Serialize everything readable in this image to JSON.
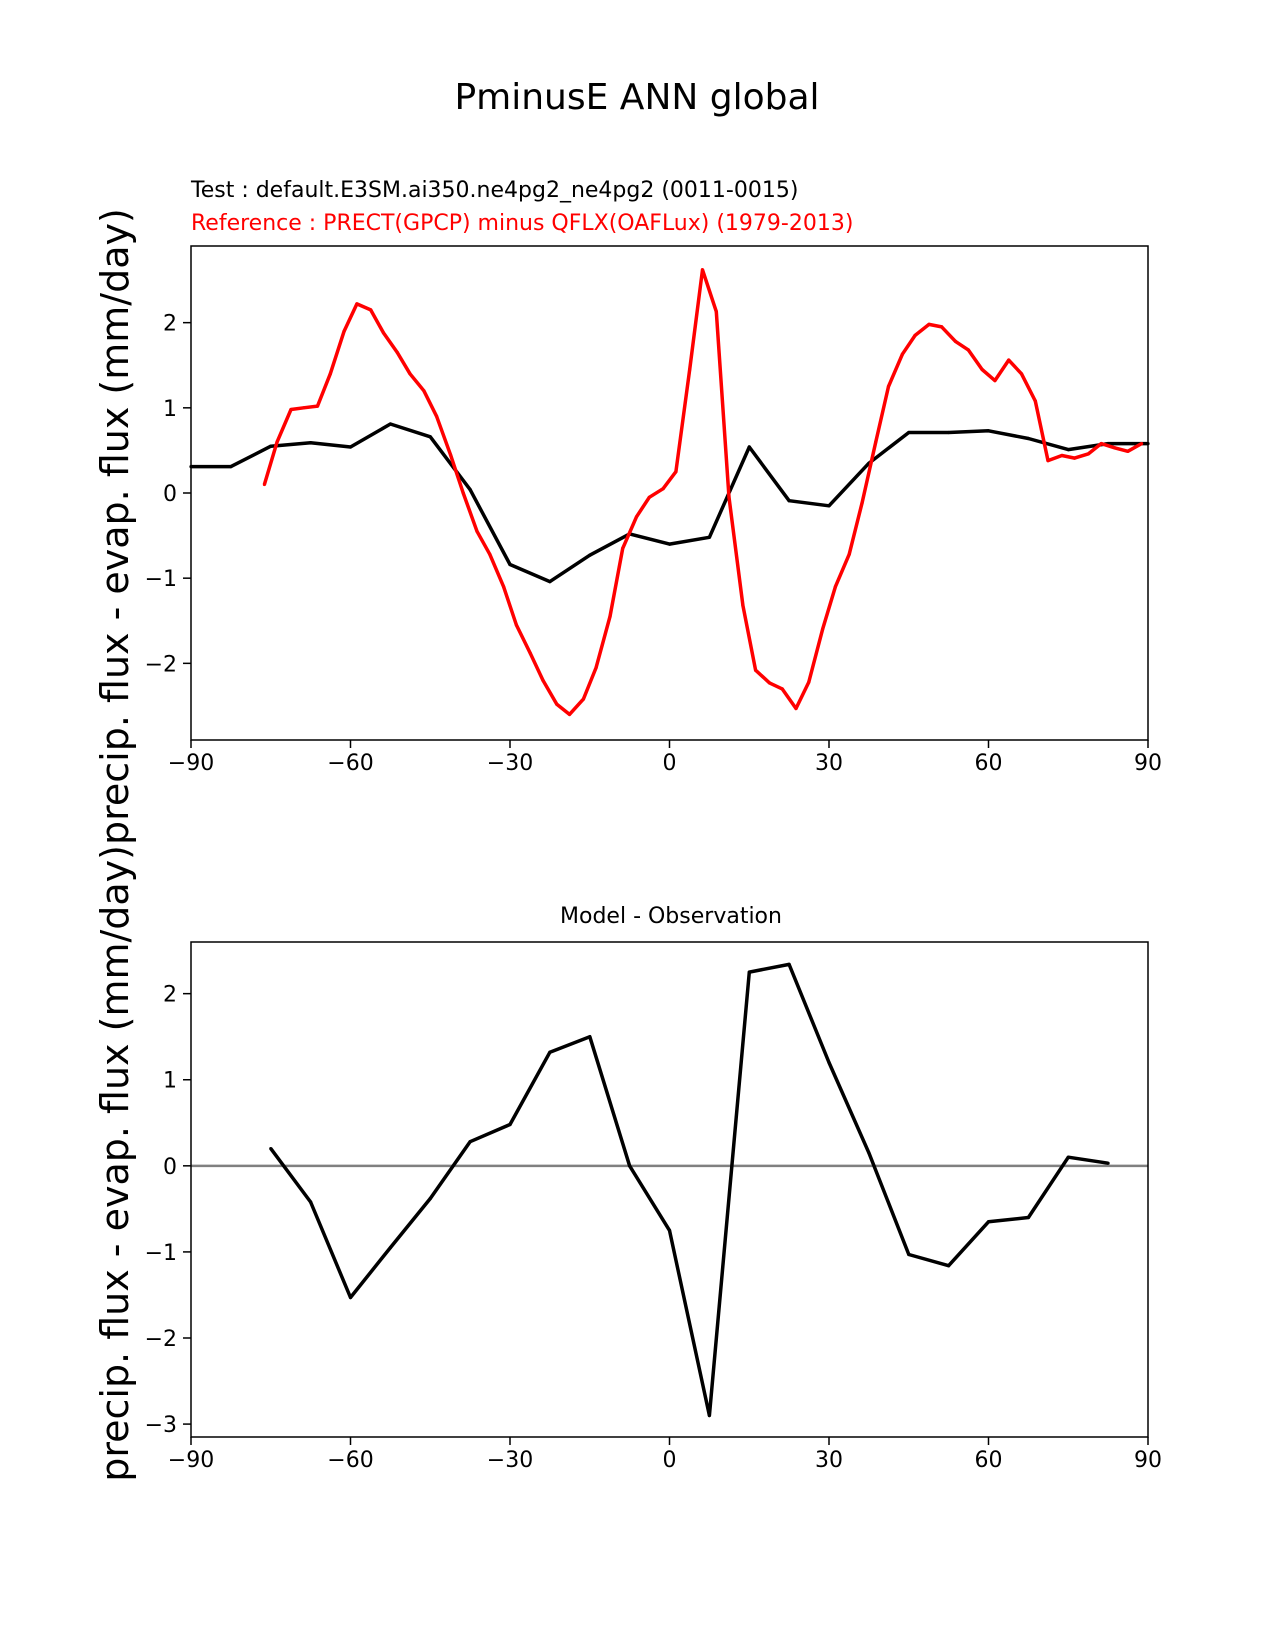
{
  "figure": {
    "suptitle": "PminusE ANN global",
    "ylabel_shared": "precip. flux - evap. flux (mm/day)precip. flux - evap. flux (mm/day)"
  },
  "colors": {
    "test": "#000000",
    "reference": "#ff0000",
    "zero_line": "#808080"
  },
  "chart_data": [
    {
      "type": "line",
      "title": "",
      "test_label": "Test : default.E3SM.ai350.ne4pg2_ne4pg2 (0011-0015)",
      "reference_label": "Reference : PRECT(GPCP) minus QFLX(OAFLux) (1979-2013)",
      "xlabel": "",
      "ylabel": "precip. flux - evap. flux (mm/day)",
      "xlim": [
        -90,
        90
      ],
      "ylim": [
        -2.9,
        2.9
      ],
      "xticks": [
        -90,
        -60,
        -30,
        0,
        30,
        60,
        90
      ],
      "yticks": [
        -2,
        -1,
        0,
        1,
        2
      ],
      "grid": false,
      "series": [
        {
          "role": "test",
          "x": [
            -90,
            -82.5,
            -75,
            -67.5,
            -60,
            -52.5,
            -45,
            -37.5,
            -30,
            -22.5,
            -15,
            -7.5,
            0,
            7.5,
            15,
            22.5,
            30,
            37.5,
            45,
            52.5,
            60,
            67.5,
            75,
            82.5,
            90
          ],
          "y": [
            0.31,
            0.31,
            0.55,
            0.59,
            0.54,
            0.81,
            0.66,
            0.04,
            -0.84,
            -1.04,
            -0.73,
            -0.48,
            -0.6,
            -0.52,
            0.54,
            -0.09,
            -0.15,
            0.35,
            0.71,
            0.71,
            0.73,
            0.64,
            0.51,
            0.58,
            0.58
          ]
        },
        {
          "role": "reference",
          "x": [
            -76.2,
            -73.8,
            -71.2,
            -68.8,
            -66.2,
            -63.8,
            -61.2,
            -58.8,
            -56.2,
            -53.8,
            -51.2,
            -48.8,
            -46.2,
            -43.8,
            -41.2,
            -38.8,
            -36.2,
            -33.8,
            -31.2,
            -28.8,
            -26.2,
            -23.8,
            -21.2,
            -18.8,
            -16.2,
            -13.8,
            -11.2,
            -8.8,
            -6.2,
            -3.8,
            -1.2,
            1.2,
            3.8,
            6.2,
            8.8,
            11.2,
            13.8,
            16.2,
            18.8,
            21.2,
            23.8,
            26.2,
            28.8,
            31.2,
            33.8,
            36.2,
            38.8,
            41.2,
            43.8,
            46.2,
            48.8,
            51.2,
            53.8,
            56.2,
            58.8,
            61.2,
            63.8,
            66.2,
            68.8,
            71.2,
            73.8,
            76.2,
            78.8,
            81.2,
            83.8,
            86.2,
            88.8
          ],
          "y": [
            0.1,
            0.6,
            0.98,
            1.0,
            1.02,
            1.4,
            1.9,
            2.22,
            2.15,
            1.88,
            1.65,
            1.4,
            1.2,
            0.9,
            0.45,
            0.0,
            -0.45,
            -0.72,
            -1.1,
            -1.55,
            -1.88,
            -2.2,
            -2.48,
            -2.6,
            -2.42,
            -2.05,
            -1.45,
            -0.65,
            -0.28,
            -0.05,
            0.05,
            0.25,
            1.45,
            2.62,
            2.13,
            -0.05,
            -1.32,
            -2.08,
            -2.23,
            -2.3,
            -2.53,
            -2.22,
            -1.6,
            -1.1,
            -0.72,
            -0.12,
            0.6,
            1.25,
            1.63,
            1.85,
            1.98,
            1.95,
            1.78,
            1.68,
            1.45,
            1.32,
            1.56,
            1.4,
            1.08,
            0.38,
            0.44,
            0.41,
            0.46,
            0.58,
            0.53,
            0.49,
            0.58
          ]
        }
      ]
    },
    {
      "type": "line",
      "title": "Model - Observation",
      "xlabel": "",
      "ylabel": "precip. flux - evap. flux (mm/day)",
      "xlim": [
        -90,
        90
      ],
      "ylim": [
        -3.15,
        2.6
      ],
      "xticks": [
        -90,
        -60,
        -30,
        0,
        30,
        60,
        90
      ],
      "yticks": [
        -3,
        -2,
        -1,
        0,
        1,
        2
      ],
      "grid": false,
      "zero_line": true,
      "series": [
        {
          "role": "difference",
          "x": [
            -75,
            -67.5,
            -60,
            -52.5,
            -45,
            -37.5,
            -30,
            -22.5,
            -15,
            -7.5,
            0,
            7.5,
            15,
            22.5,
            30,
            37.5,
            45,
            52.5,
            60,
            67.5,
            75,
            82.5
          ],
          "y": [
            0.2,
            -0.42,
            -1.53,
            -0.95,
            -0.38,
            0.28,
            0.48,
            1.32,
            1.5,
            0.0,
            -0.75,
            -2.9,
            2.25,
            2.34,
            1.2,
            0.15,
            -1.03,
            -1.16,
            -0.65,
            -0.6,
            0.1,
            0.03
          ]
        }
      ]
    }
  ]
}
